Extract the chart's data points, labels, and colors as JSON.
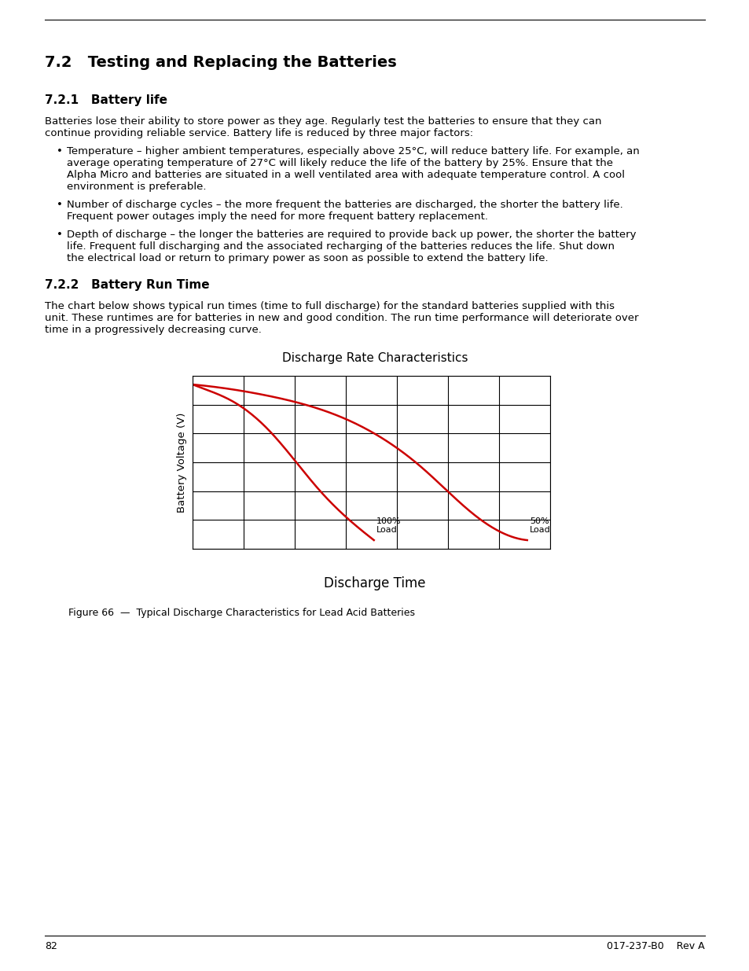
{
  "title_section": "7.2   Testing and Replacing the Batteries",
  "subsection1_title": "7.2.1   Battery life",
  "subsection1_body": [
    "Batteries lose their ability to store power as they age. Regularly test the batteries to ensure that they can continue providing reliable service. Battery life is reduced by three major factors:"
  ],
  "bullet_points": [
    "Temperature – higher ambient temperatures, especially above 25°C, will reduce battery life. For example, an average operating temperature of 27°C will likely reduce the life of the battery by 25%. Ensure that the Alpha Micro and batteries are situated in a well ventilated area with adequate temperature control. A cool environment is preferable.",
    "Number of discharge cycles – the more frequent the batteries are discharged, the shorter the battery life. Frequent power outages imply the need for more frequent battery replacement.",
    "Depth of discharge – the longer the batteries are required to provide back up power, the shorter the battery life. Frequent full discharging and the associated recharging of the batteries reduces the life. Shut down the electrical load or return to primary power as soon as possible to extend the battery life."
  ],
  "subsection2_title": "7.2.2   Battery Run Time",
  "subsection2_body": "The chart below shows typical run times (time to full discharge) for the standard batteries supplied with this unit. These runtimes are for batteries in new and good condition. The run time performance will deteriorate over time in a progressively decreasing curve.",
  "chart_title": "Discharge Rate Characteristics",
  "chart_xlabel": "Discharge Time",
  "chart_ylabel": "Battery Voltage (V)",
  "curve1_label": "100%\nLoad",
  "curve2_label": "50%\nLoad",
  "figure_caption": "Figure 66  —  Typical Discharge Characteristics for Lead Acid Batteries",
  "page_number": "82",
  "doc_number": "017-237-B0    Rev A",
  "curve_color": "#cc0000",
  "grid_color": "#000000",
  "bg_color": "#ffffff",
  "text_color": "#000000"
}
